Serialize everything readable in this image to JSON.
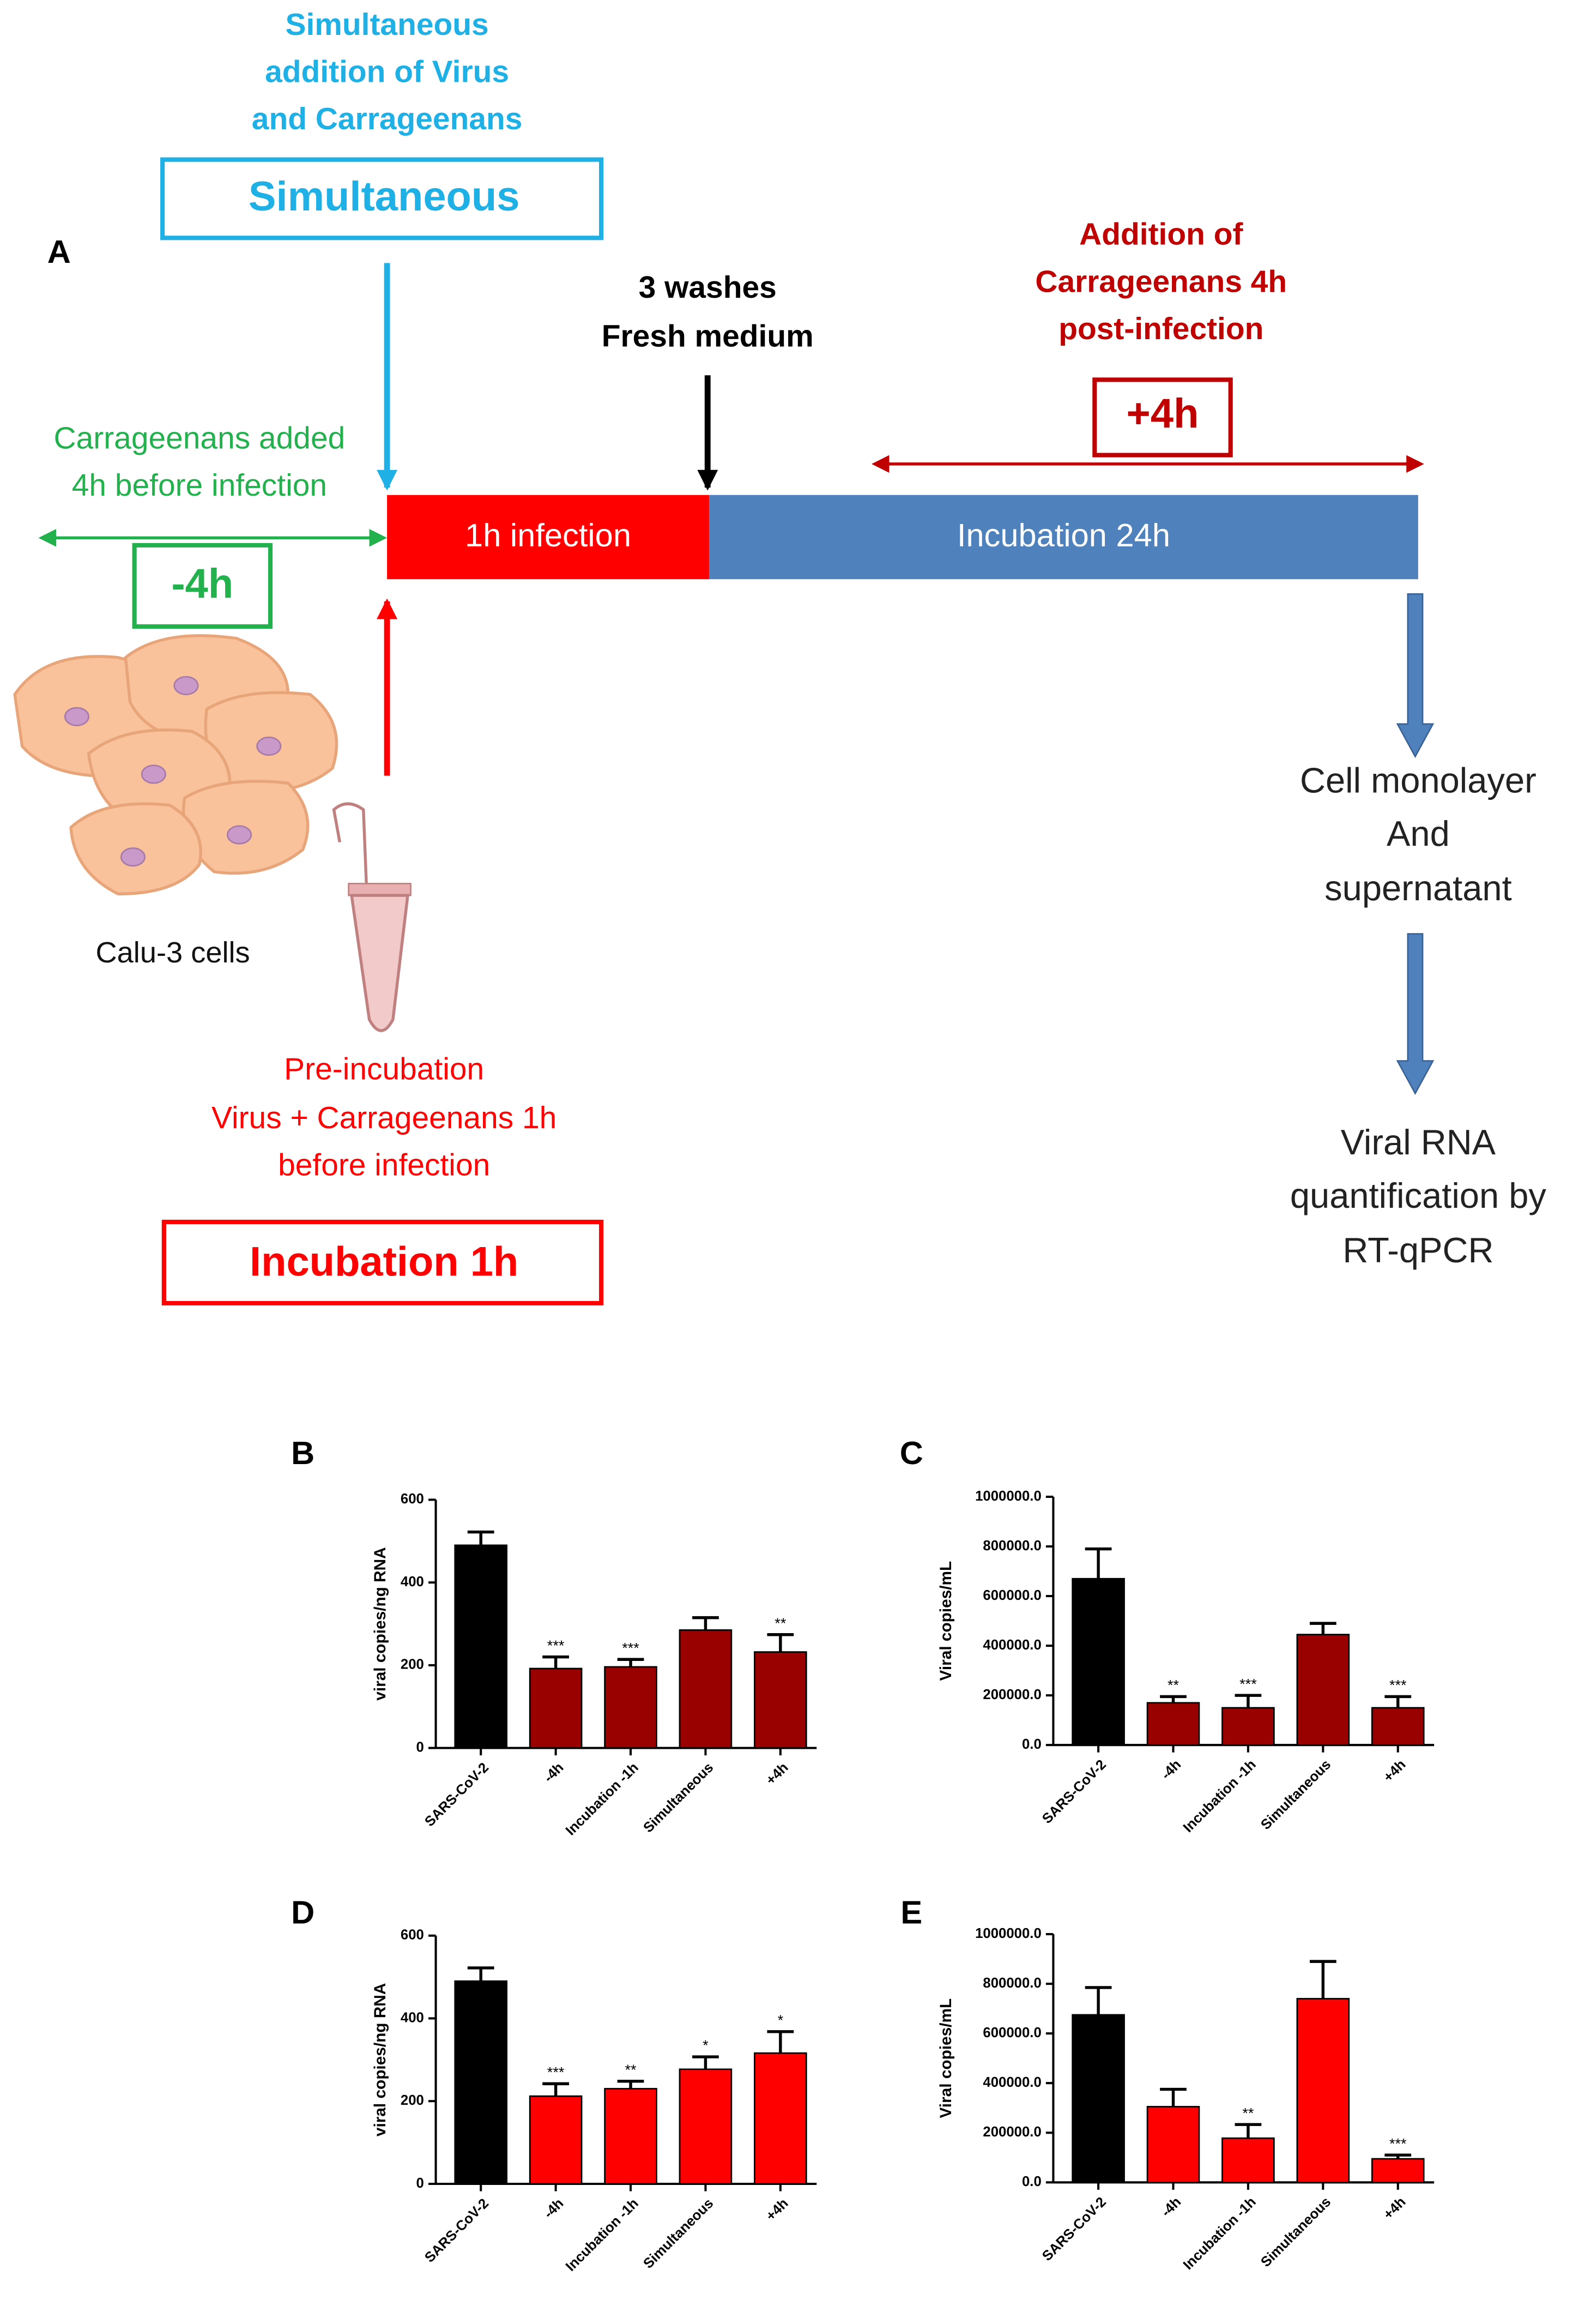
{
  "diagram": {
    "panel": "A",
    "simultaneous_caption": [
      "Simultaneous",
      "addition of Virus",
      "and Carrageenans"
    ],
    "simultaneous_box": "Simultaneous",
    "washes": [
      "3 washes",
      "Fresh medium"
    ],
    "plus4_caption": [
      "Addition of",
      "Carrageenans 4h",
      "post-infection"
    ],
    "plus4_box": "+4h",
    "minus4_caption": [
      "Carrageenans added",
      "4h before infection"
    ],
    "minus4_box": "-4h",
    "infection": "1h infection",
    "incubation24": "Incubation 24h",
    "cells": "Calu-3 cells",
    "preinc_caption": [
      "Pre-incubation",
      "Virus + Carrageenans 1h",
      "before infection"
    ],
    "preinc_box": "Incubation 1h",
    "output1": [
      "Cell monolayer",
      "And",
      "supernatant"
    ],
    "output2": [
      "Viral RNA",
      "quantification by",
      "RT-qPCR"
    ]
  },
  "chart_data": [
    {
      "type": "bar",
      "panel": "B",
      "ylabel": "viral copies/ng RNA",
      "categories": [
        "SARS-CoV-2",
        "-4h",
        "Incubation -1h",
        "Simultaneous",
        "+4h"
      ],
      "values": [
        490,
        192,
        196,
        285,
        232
      ],
      "errors": [
        32,
        28,
        18,
        30,
        42
      ],
      "annotations": [
        null,
        "***",
        "***",
        null,
        "**"
      ],
      "colors": [
        "#000000",
        "#990000",
        "#990000",
        "#990000",
        "#990000"
      ],
      "ylim": [
        0,
        600
      ],
      "yticks": [
        0,
        200,
        400,
        600
      ]
    },
    {
      "type": "bar",
      "panel": "C",
      "ylabel": "Viral copies/mL",
      "categories": [
        "SARS-CoV-2",
        "-4h",
        "Incubation -1h",
        "Simultaneous",
        "+4h"
      ],
      "values": [
        670000,
        170000,
        150000,
        445000,
        150000
      ],
      "errors": [
        120000,
        25000,
        50000,
        45000,
        45000
      ],
      "annotations": [
        null,
        "**",
        "***",
        null,
        "***"
      ],
      "colors": [
        "#000000",
        "#990000",
        "#990000",
        "#990000",
        "#990000"
      ],
      "ylim": [
        0,
        1000000
      ],
      "yticks": [
        {
          "value": 0,
          "label": "0.0"
        },
        {
          "value": 200000,
          "label": "200000.0"
        },
        {
          "value": 400000,
          "label": "400000.0"
        },
        {
          "value": 600000,
          "label": "600000.0"
        },
        {
          "value": 800000,
          "label": "800000.0"
        },
        {
          "value": 1000000,
          "label": "1000000.0"
        }
      ]
    },
    {
      "type": "bar",
      "panel": "D",
      "ylabel": "viral copies/ng RNA",
      "categories": [
        "SARS-CoV-2",
        "-4h",
        "Incubation -1h",
        "Simultaneous",
        "+4h"
      ],
      "values": [
        490,
        212,
        230,
        277,
        316
      ],
      "errors": [
        32,
        30,
        18,
        30,
        52
      ],
      "annotations": [
        null,
        "***",
        "**",
        "*",
        "*"
      ],
      "colors": [
        "#000000",
        "#ff0000",
        "#ff0000",
        "#ff0000",
        "#ff0000"
      ],
      "ylim": [
        0,
        600
      ],
      "yticks": [
        0,
        200,
        400,
        600
      ]
    },
    {
      "type": "bar",
      "panel": "E",
      "ylabel": "Viral copies/mL",
      "categories": [
        "SARS-CoV-2",
        "-4h",
        "Incubation -1h",
        "Simultaneous",
        "+4h"
      ],
      "values": [
        675000,
        305000,
        178000,
        740000,
        95000
      ],
      "errors": [
        110000,
        70000,
        55000,
        150000,
        15000
      ],
      "annotations": [
        null,
        null,
        "**",
        null,
        "***"
      ],
      "colors": [
        "#000000",
        "#ff0000",
        "#ff0000",
        "#ff0000",
        "#ff0000"
      ],
      "ylim": [
        0,
        1000000
      ],
      "yticks": [
        {
          "value": 0,
          "label": "0.0"
        },
        {
          "value": 200000,
          "label": "200000.0"
        },
        {
          "value": 400000,
          "label": "400000.0"
        },
        {
          "value": 600000,
          "label": "600000.0"
        },
        {
          "value": 800000,
          "label": "800000.0"
        },
        {
          "value": 1000000,
          "label": "1000000.0"
        }
      ]
    }
  ]
}
